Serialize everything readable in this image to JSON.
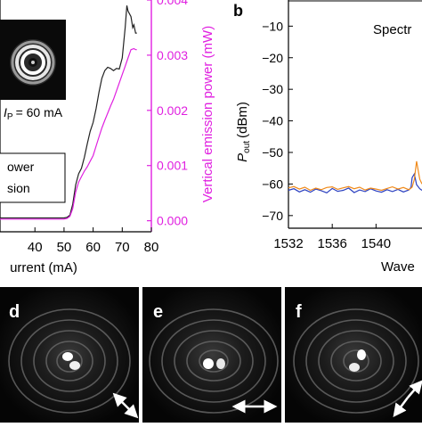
{
  "panel_labels": {
    "b": "b",
    "d": "d",
    "e": "e",
    "f": "f"
  },
  "inset_label": "I",
  "inset_label_sub": "P",
  "inset_label_value": "= 60 mA",
  "legend": {
    "line1": "ower",
    "line2": "sion"
  },
  "panel_b_annotation": "Spectr",
  "colors": {
    "black_series": "#222222",
    "magenta": "#e020e0",
    "blue_series": "#2a3fc0",
    "orange_series": "#f08a1a"
  },
  "chart_data": [
    {
      "type": "line",
      "panel": "a",
      "xlabel": "urrent (mA)",
      "ylabel_right": "Vertical emission power (mW)",
      "x_ticks": [
        40,
        50,
        60,
        70,
        80
      ],
      "right_ticks": [
        "0.000",
        "0.001",
        "0.002",
        "0.003",
        "0.004"
      ],
      "xlim": [
        28,
        80
      ],
      "ylim_right": [
        -0.0002,
        0.004
      ],
      "series": [
        {
          "color": "black",
          "x": [
            28,
            40,
            50,
            51,
            52,
            53,
            54,
            55,
            56,
            57,
            58,
            59,
            60,
            61,
            62,
            63,
            64,
            65,
            66,
            67,
            68,
            69,
            70,
            71,
            71.6,
            72,
            73,
            73.6,
            74,
            74.6,
            75
          ],
          "y": [
            5e-05,
            5e-05,
            5e-05,
            6e-05,
            0.0001,
            0.0003,
            0.00065,
            0.00085,
            0.00095,
            0.00115,
            0.0014,
            0.00162,
            0.00178,
            0.00203,
            0.00233,
            0.00258,
            0.00272,
            0.00278,
            0.00276,
            0.00272,
            0.00276,
            0.00275,
            0.00295,
            0.0035,
            0.0039,
            0.0038,
            0.0037,
            0.0035,
            0.00355,
            0.0034,
            0.0034
          ]
        },
        {
          "color": "magenta",
          "x": [
            28,
            40,
            50,
            51,
            52,
            53,
            54,
            55,
            56,
            57,
            58,
            59,
            60,
            61,
            62,
            63,
            64,
            65,
            66,
            67,
            68,
            69,
            70,
            71,
            72,
            73,
            74,
            74.6,
            75
          ],
          "y": [
            3e-05,
            3e-05,
            3e-05,
            4e-05,
            8e-05,
            0.00022,
            0.00052,
            0.0007,
            0.0008,
            0.0009,
            0.00098,
            0.00108,
            0.00118,
            0.00135,
            0.00152,
            0.00168,
            0.00182,
            0.00195,
            0.00208,
            0.0022,
            0.00235,
            0.0025,
            0.00265,
            0.0028,
            0.00295,
            0.0031,
            0.00312,
            0.0031,
            0.0031
          ]
        }
      ]
    },
    {
      "type": "line",
      "panel": "b",
      "xlabel": "Wave",
      "ylabel": "P",
      "ylabel_sub": "out",
      "ylabel_suffix": "(dBm)",
      "x_ticks": [
        1532,
        1536,
        1540
      ],
      "y_ticks": [
        -10,
        -20,
        -30,
        -40,
        -50,
        -60,
        -70
      ],
      "xlim": [
        1532,
        1544.2
      ],
      "ylim": [
        -74,
        -2
      ],
      "series": [
        {
          "color": "blue",
          "x": [
            1532,
            1532.5,
            1533,
            1533.5,
            1534,
            1534.5,
            1535,
            1535.5,
            1536,
            1536.5,
            1537,
            1537.5,
            1538,
            1538.5,
            1539,
            1539.5,
            1540,
            1540.5,
            1541,
            1541.5,
            1542,
            1542.5,
            1543,
            1543.2,
            1543.3,
            1543.5,
            1543.7,
            1544,
            1544.2
          ],
          "y": [
            -62,
            -61.5,
            -62.5,
            -61.8,
            -62.6,
            -61.6,
            -62.1,
            -62.8,
            -61.4,
            -62.3,
            -62.0,
            -61.3,
            -62.7,
            -61.9,
            -62.4,
            -61.5,
            -62.2,
            -62.6,
            -61.8,
            -62.4,
            -61.7,
            -62.5,
            -61.9,
            -61.0,
            -58.0,
            -56.8,
            -60.2,
            -61.5,
            -62.0
          ]
        },
        {
          "color": "orange",
          "x": [
            1532,
            1532.5,
            1533,
            1533.5,
            1534,
            1534.5,
            1535,
            1535.5,
            1536,
            1536.5,
            1537,
            1537.5,
            1538,
            1538.5,
            1539,
            1539.5,
            1540,
            1540.5,
            1541,
            1541.5,
            1542,
            1542.5,
            1543,
            1543.3,
            1543.5,
            1543.7,
            1544,
            1544.2
          ],
          "y": [
            -61.2,
            -60.8,
            -61.6,
            -61.0,
            -62.0,
            -61.3,
            -61.8,
            -61.1,
            -60.9,
            -61.7,
            -61.2,
            -60.8,
            -61.5,
            -61.0,
            -61.9,
            -61.3,
            -61.6,
            -62.0,
            -61.4,
            -60.9,
            -61.6,
            -61.1,
            -61.8,
            -61.0,
            -58.5,
            -52.8,
            -58.5,
            -60.0
          ]
        }
      ]
    }
  ],
  "arrows": {
    "d": "diagonal-down-right",
    "e": "horizontal",
    "f": "diagonal-up-right"
  }
}
